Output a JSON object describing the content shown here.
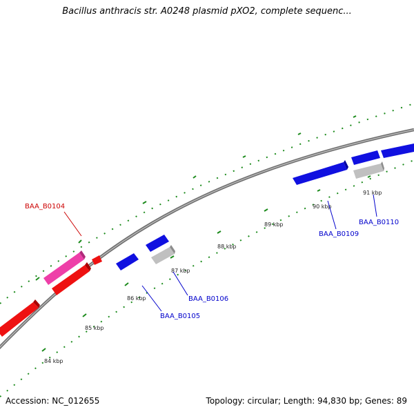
{
  "title": "Bacillus anthracis str. A0248 plasmid pXO2, complete sequenc...",
  "accession": "Accession: NC_012655",
  "topology": "Topology: circular; Length: 94,830 bp; Genes: 89",
  "colors": {
    "backbone": "#888888",
    "tick": "#1a8a1a",
    "gene_forward": "#1010e0",
    "gene_reverse": "#ee1111",
    "gene_pink": "#ee3fa8",
    "gene_grey": "#bdbdbd",
    "label_blue": "#0000cc",
    "label_red": "#cc0000"
  },
  "kbp_labels": [
    "84 kbp",
    "85 kbp",
    "86 kbp",
    "87 kbp",
    "88 kbp",
    "89 kbp",
    "90 kbp",
    "91 kbp"
  ],
  "gene_labels": [
    {
      "text": "BAA_B0104",
      "color": "red"
    },
    {
      "text": "BAA_B0105",
      "color": "blue"
    },
    {
      "text": "BAA_B0106",
      "color": "blue"
    },
    {
      "text": "BAA_B0109",
      "color": "blue"
    },
    {
      "text": "BAA_B0110",
      "color": "blue"
    }
  ]
}
